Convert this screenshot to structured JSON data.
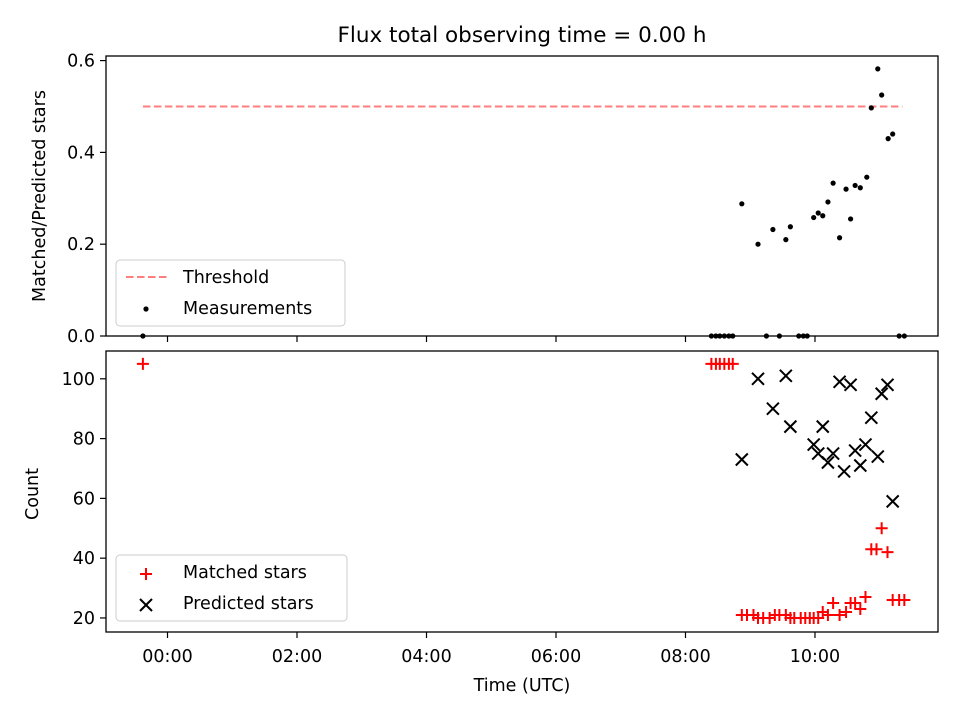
{
  "figure": {
    "title": "Flux total observing time = 0.00 h",
    "xlabel": "Time (UTC)",
    "x_ticklabels": [
      "00:00",
      "02:00",
      "04:00",
      "06:00",
      "08:00",
      "10:00"
    ],
    "x_ticks_hours": [
      0,
      2,
      4,
      6,
      8,
      10
    ],
    "xlim_hours": [
      -0.95,
      11.9
    ]
  },
  "chart_data": [
    {
      "type": "scatter",
      "name": "top-panel",
      "ylabel": "Matched/Predicted stars",
      "ylim": [
        0,
        0.61
      ],
      "yticks": [
        0,
        0.2,
        0.4,
        0.6
      ],
      "ytick_labels": [
        "0.0",
        "0.2",
        "0.4",
        "0.6"
      ],
      "legend": "lower-left",
      "threshold": {
        "name": "Threshold",
        "value": 0.5,
        "x": [
          -0.38,
          11.35
        ],
        "color": "#ff7f7f",
        "style": "dashed"
      },
      "series": [
        {
          "name": "Measurements",
          "color": "#000000",
          "marker": "dot",
          "x": [
            -0.38,
            8.4,
            8.47,
            8.53,
            8.6,
            8.67,
            8.73,
            8.87,
            9.12,
            9.25,
            9.35,
            9.45,
            9.55,
            9.62,
            9.75,
            9.82,
            9.88,
            9.98,
            10.05,
            10.12,
            10.2,
            10.28,
            10.38,
            10.48,
            10.55,
            10.62,
            10.7,
            10.8,
            10.87,
            10.97,
            11.03,
            11.13,
            11.2,
            11.3,
            11.38
          ],
          "y": [
            0,
            0,
            0,
            0,
            0,
            0,
            0,
            0.288,
            0.2,
            0,
            0.232,
            0,
            0.21,
            0.238,
            0,
            0,
            0,
            0.258,
            0.268,
            0.262,
            0.292,
            0.333,
            0.214,
            0.32,
            0.255,
            0.328,
            0.323,
            0.346,
            0.497,
            0.582,
            0.525,
            0.43,
            0.44,
            0,
            0
          ]
        }
      ]
    },
    {
      "type": "scatter",
      "name": "bottom-panel",
      "ylabel": "Count",
      "ylim": [
        15.3,
        109.3
      ],
      "yticks": [
        20,
        40,
        60,
        80,
        100
      ],
      "ytick_labels": [
        "20",
        "40",
        "60",
        "80",
        "100"
      ],
      "legend": "lower-left",
      "series": [
        {
          "name": "Matched stars",
          "color": "#ff0000",
          "marker": "plus",
          "x": [
            -0.38,
            8.4,
            8.47,
            8.53,
            8.6,
            8.67,
            8.73,
            8.87,
            8.95,
            9.05,
            9.12,
            9.2,
            9.3,
            9.38,
            9.45,
            9.55,
            9.62,
            9.68,
            9.78,
            9.85,
            9.92,
            9.98,
            10.05,
            10.12,
            10.2,
            10.28,
            10.38,
            10.48,
            10.55,
            10.62,
            10.7,
            10.78,
            10.87,
            10.95,
            11.03,
            11.12,
            11.2,
            11.3,
            11.38
          ],
          "y": [
            105,
            105,
            105,
            105,
            105,
            105,
            105,
            21,
            21,
            21,
            20,
            20,
            20,
            21,
            21,
            21,
            20,
            20,
            20,
            20,
            20,
            20,
            20,
            22,
            21,
            25,
            21,
            22,
            25,
            25,
            23,
            27,
            43,
            43,
            50,
            42,
            26,
            26,
            26
          ]
        },
        {
          "name": "Predicted stars",
          "color": "#000000",
          "marker": "x",
          "x": [
            8.87,
            9.12,
            9.35,
            9.55,
            9.62,
            9.98,
            10.05,
            10.12,
            10.2,
            10.28,
            10.38,
            10.45,
            10.55,
            10.62,
            10.7,
            10.78,
            10.87,
            10.97,
            11.03,
            11.12,
            11.2
          ],
          "y": [
            73,
            100,
            90,
            101,
            84,
            78,
            75,
            84,
            72,
            75,
            99,
            69,
            98,
            76,
            71,
            78,
            87,
            74,
            95,
            98,
            59
          ]
        }
      ]
    }
  ]
}
